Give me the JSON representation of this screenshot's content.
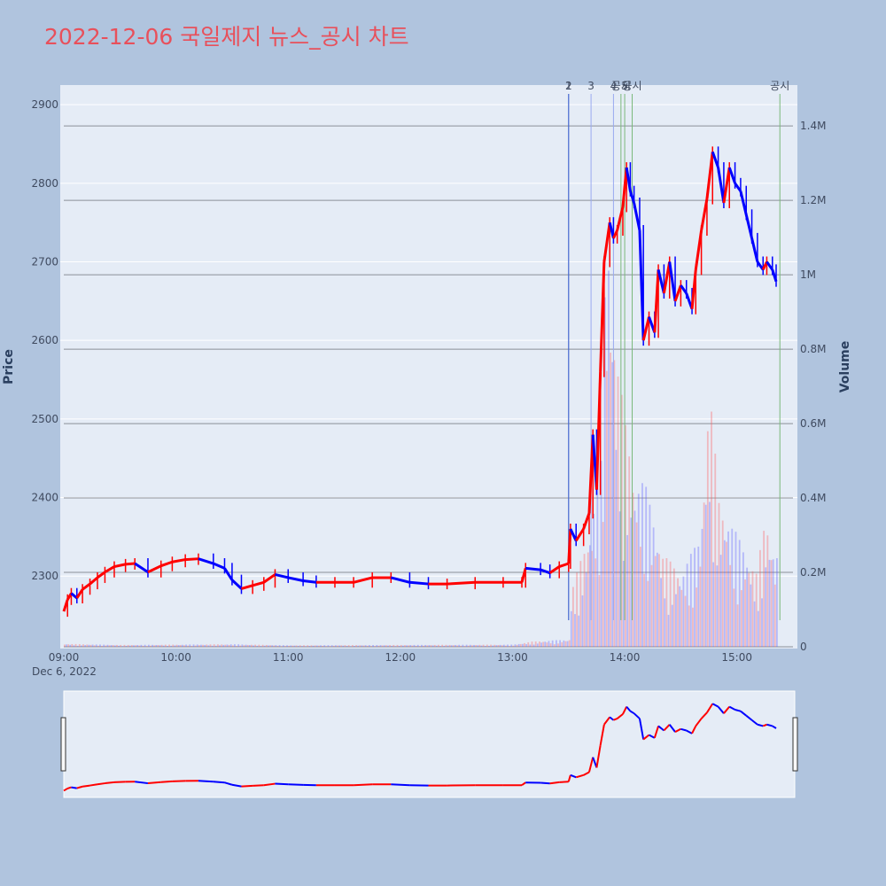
{
  "chart_data": {
    "type": "candlestick",
    "title": "2022-12-06 국일제지 뉴스_공시 차트",
    "ylabel": "Price",
    "y2label": "Volume",
    "xlabel": "",
    "date_label": "Dec 6, 2022",
    "x_ticks": [
      "09:00",
      "10:00",
      "11:00",
      "12:00",
      "13:00",
      "14:00",
      "15:00"
    ],
    "y_ticks": [
      2300,
      2400,
      2500,
      2600,
      2700,
      2800,
      2900
    ],
    "ylim": [
      2210,
      2925
    ],
    "volume_ticks": [
      "0",
      "0.2M",
      "0.4M",
      "0.6M",
      "0.8M",
      "1M",
      "1.2M",
      "1.4M"
    ],
    "volume_tick_values": [
      0,
      200000,
      400000,
      600000,
      800000,
      1000000,
      1200000,
      1400000
    ],
    "volume_lim": [
      0,
      1510000
    ],
    "time_range": [
      "09:00",
      "15:30"
    ],
    "up_color": "#ff0000",
    "down_color": "#0000ff",
    "price_path": [
      [
        "09:00",
        2255
      ],
      [
        "09:02",
        2270
      ],
      [
        "09:04",
        2278
      ],
      [
        "09:07",
        2272
      ],
      [
        "09:10",
        2283
      ],
      [
        "09:14",
        2290
      ],
      [
        "09:18",
        2298
      ],
      [
        "09:22",
        2305
      ],
      [
        "09:27",
        2312
      ],
      [
        "09:33",
        2315
      ],
      [
        "09:38",
        2316
      ],
      [
        "09:45",
        2305
      ],
      [
        "09:52",
        2313
      ],
      [
        "09:58",
        2318
      ],
      [
        "10:05",
        2321
      ],
      [
        "10:12",
        2322
      ],
      [
        "10:20",
        2316
      ],
      [
        "10:26",
        2310
      ],
      [
        "10:30",
        2295
      ],
      [
        "10:35",
        2284
      ],
      [
        "10:41",
        2288
      ],
      [
        "10:47",
        2292
      ],
      [
        "10:53",
        2302
      ],
      [
        "11:00",
        2298
      ],
      [
        "11:08",
        2294
      ],
      [
        "11:15",
        2292
      ],
      [
        "11:25",
        2292
      ],
      [
        "11:35",
        2292
      ],
      [
        "11:45",
        2298
      ],
      [
        "11:55",
        2298
      ],
      [
        "12:05",
        2292
      ],
      [
        "12:15",
        2290
      ],
      [
        "12:25",
        2290
      ],
      [
        "12:40",
        2292
      ],
      [
        "12:55",
        2292
      ],
      [
        "13:05",
        2292
      ],
      [
        "13:07",
        2310
      ],
      [
        "13:15",
        2308
      ],
      [
        "13:20",
        2304
      ],
      [
        "13:25",
        2312
      ],
      [
        "13:30",
        2316
      ],
      [
        "13:31",
        2360
      ],
      [
        "13:34",
        2345
      ],
      [
        "13:38",
        2360
      ],
      [
        "13:41",
        2380
      ],
      [
        "13:43",
        2480
      ],
      [
        "13:45",
        2410
      ],
      [
        "13:47",
        2560
      ],
      [
        "13:49",
        2700
      ],
      [
        "13:52",
        2750
      ],
      [
        "13:54",
        2730
      ],
      [
        "13:56",
        2740
      ],
      [
        "13:59",
        2770
      ],
      [
        "14:01",
        2820
      ],
      [
        "14:03",
        2790
      ],
      [
        "14:05",
        2775
      ],
      [
        "14:08",
        2740
      ],
      [
        "14:10",
        2600
      ],
      [
        "14:13",
        2630
      ],
      [
        "14:16",
        2610
      ],
      [
        "14:18",
        2690
      ],
      [
        "14:21",
        2660
      ],
      [
        "14:24",
        2700
      ],
      [
        "14:27",
        2650
      ],
      [
        "14:30",
        2670
      ],
      [
        "14:33",
        2660
      ],
      [
        "14:36",
        2640
      ],
      [
        "14:38",
        2690
      ],
      [
        "14:41",
        2740
      ],
      [
        "14:44",
        2780
      ],
      [
        "14:47",
        2840
      ],
      [
        "14:50",
        2820
      ],
      [
        "14:53",
        2775
      ],
      [
        "14:56",
        2820
      ],
      [
        "14:59",
        2800
      ],
      [
        "15:02",
        2790
      ],
      [
        "15:05",
        2760
      ],
      [
        "15:08",
        2730
      ],
      [
        "15:11",
        2700
      ],
      [
        "15:14",
        2690
      ],
      [
        "15:16",
        2700
      ],
      [
        "15:19",
        2690
      ],
      [
        "15:21",
        2675
      ]
    ],
    "volume_path": [
      [
        "09:00",
        8000
      ],
      [
        "09:30",
        5000
      ],
      [
        "10:00",
        6000
      ],
      [
        "10:30",
        7000
      ],
      [
        "11:00",
        4000
      ],
      [
        "12:00",
        5000
      ],
      [
        "13:00",
        6000
      ],
      [
        "13:10",
        14000
      ],
      [
        "13:30",
        20000
      ],
      [
        "13:31",
        150000
      ],
      [
        "13:40",
        300000
      ],
      [
        "13:47",
        500000
      ],
      [
        "13:50",
        1200000
      ],
      [
        "13:55",
        800000
      ],
      [
        "14:00",
        600000
      ],
      [
        "14:05",
        450000
      ],
      [
        "14:10",
        450000
      ],
      [
        "14:20",
        250000
      ],
      [
        "14:30",
        200000
      ],
      [
        "14:40",
        300000
      ],
      [
        "14:45",
        700000
      ],
      [
        "14:50",
        400000
      ],
      [
        "15:00",
        300000
      ],
      [
        "15:10",
        200000
      ],
      [
        "15:15",
        350000
      ],
      [
        "15:20",
        250000
      ]
    ],
    "annotations": [
      {
        "label": "1",
        "time": "13:30",
        "color": "#4a6bd0"
      },
      {
        "label": "2",
        "time": "13:30",
        "color": "#4a6bd0"
      },
      {
        "label": "3",
        "time": "13:42",
        "color": "#9aaaf0"
      },
      {
        "label": "4",
        "time": "13:54",
        "color": "#9aaaf0"
      },
      {
        "label": "공시",
        "time": "13:58",
        "color": "#7ab87a"
      },
      {
        "label": "5",
        "time": "14:00",
        "color": "#7ab87a"
      },
      {
        "label": "공시",
        "time": "14:04",
        "color": "#7ab87a"
      },
      {
        "label": "공시",
        "time": "15:23",
        "color": "#7ab87a"
      }
    ]
  }
}
